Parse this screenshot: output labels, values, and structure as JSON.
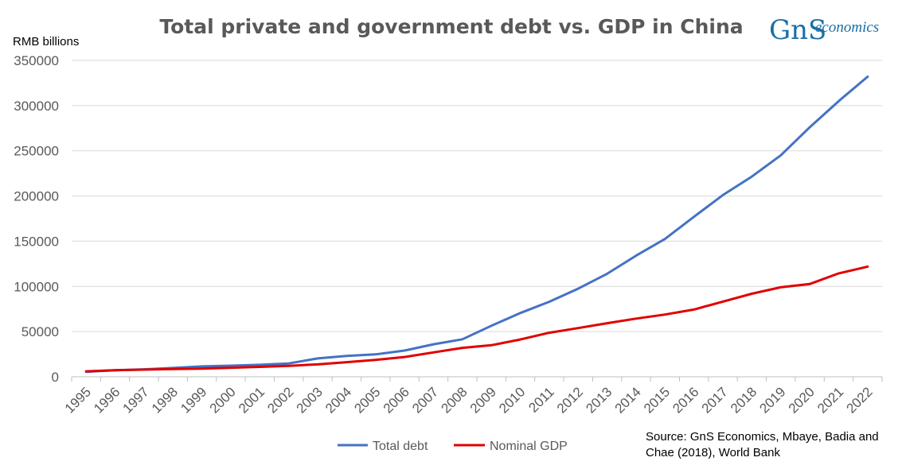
{
  "title": "Total private and government debt vs. GDP in China",
  "logo": {
    "mark": "GnS",
    "word": "economics"
  },
  "source": [
    "Source: GnS Economics, Mbaye, Badia and",
    "Chae (2018), World Bank"
  ],
  "colors": {
    "total_debt": "#4472c4",
    "nominal_gdp": "#e00000",
    "grid": "#d9d9d9",
    "text": "#595959",
    "logo": "#1b6ea8"
  },
  "chart_data": {
    "type": "line",
    "ylabel": "RMB billions",
    "ylim": [
      0,
      350000
    ],
    "yticks": [
      "0",
      "50000",
      "100000",
      "150000",
      "200000",
      "250000",
      "300000",
      "350000"
    ],
    "grid": true,
    "legend_position": "bottom",
    "x": [
      "1995",
      "1996",
      "1997",
      "1998",
      "1999",
      "2000",
      "2001",
      "2002",
      "2003",
      "2004",
      "2005",
      "2006",
      "2007",
      "2008",
      "2009",
      "2010",
      "2011",
      "2012",
      "2013",
      "2014",
      "2015",
      "2016",
      "2017",
      "2018",
      "2019",
      "2020",
      "2021",
      "2022"
    ],
    "series": [
      {
        "name": "Total debt",
        "color": "#4472c4",
        "values": [
          5500,
          7200,
          8300,
          9800,
          11500,
          12300,
          13300,
          14800,
          20300,
          23000,
          24800,
          29000,
          36000,
          41500,
          56500,
          70500,
          83000,
          97500,
          114000,
          134000,
          152500,
          177000,
          201000,
          221500,
          245000,
          276000,
          305000,
          332000
        ]
      },
      {
        "name": "Nominal GDP",
        "color": "#e00000",
        "values": [
          6100,
          7200,
          7900,
          8500,
          9100,
          10000,
          11000,
          12100,
          13700,
          16200,
          18700,
          21900,
          27000,
          32000,
          34900,
          41200,
          48700,
          53900,
          59300,
          64400,
          68900,
          74400,
          83200,
          91900,
          99000,
          102600,
          114400,
          121900
        ]
      }
    ]
  }
}
